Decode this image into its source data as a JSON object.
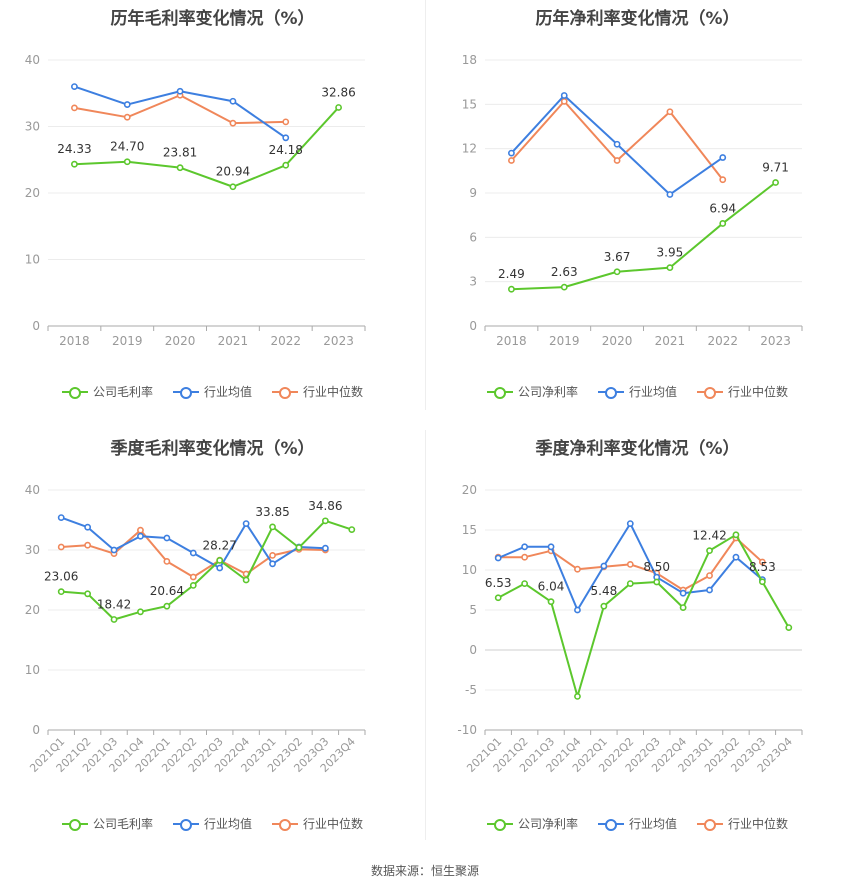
{
  "legend_colors": {
    "company": "#5cc72d",
    "industry_avg": "#3d7fe0",
    "industry_median": "#f0875a"
  },
  "footer": {
    "source": "数据来源：恒生聚源"
  },
  "chart_data": [
    {
      "type": "line",
      "title": "历年毛利率变化情况（%）",
      "x": [
        "2018",
        "2019",
        "2020",
        "2021",
        "2022",
        "2023"
      ],
      "ylim": [
        0,
        40
      ],
      "yticks": [
        "0",
        "10",
        "20",
        "30",
        "40"
      ],
      "grid": true,
      "legend_position": "bottom",
      "series": [
        {
          "name": "公司毛利率",
          "color": "#5cc72d",
          "values": [
            24.33,
            24.7,
            23.81,
            20.94,
            24.18,
            32.86
          ],
          "labels": [
            "24.33",
            "24.70",
            "23.81",
            "20.94",
            "24.18",
            "32.86"
          ]
        },
        {
          "name": "行业均值",
          "color": "#3d7fe0",
          "values": [
            36.0,
            33.3,
            35.3,
            33.8,
            28.3,
            null
          ]
        },
        {
          "name": "行业中位数",
          "color": "#f0875a",
          "values": [
            32.8,
            31.4,
            34.7,
            30.5,
            30.7,
            null
          ]
        }
      ]
    },
    {
      "type": "line",
      "title": "历年净利率变化情况（%）",
      "x": [
        "2018",
        "2019",
        "2020",
        "2021",
        "2022",
        "2023"
      ],
      "ylim": [
        0,
        18
      ],
      "yticks": [
        "0",
        "3",
        "6",
        "9",
        "12",
        "15",
        "18"
      ],
      "grid": true,
      "legend_position": "bottom",
      "series": [
        {
          "name": "公司净利率",
          "color": "#5cc72d",
          "values": [
            2.49,
            2.63,
            3.67,
            3.95,
            6.94,
            9.71
          ],
          "labels": [
            "2.49",
            "2.63",
            "3.67",
            "3.95",
            "6.94",
            "9.71"
          ]
        },
        {
          "name": "行业均值",
          "color": "#3d7fe0",
          "values": [
            11.7,
            15.6,
            12.3,
            8.9,
            11.4,
            null
          ]
        },
        {
          "name": "行业中位数",
          "color": "#f0875a",
          "values": [
            11.2,
            15.2,
            11.2,
            14.5,
            9.9,
            null
          ]
        }
      ]
    },
    {
      "type": "line",
      "title": "季度毛利率变化情况（%）",
      "x": [
        "2021Q1",
        "2021Q2",
        "2021Q3",
        "2021Q4",
        "2022Q1",
        "2022Q2",
        "2022Q3",
        "2022Q4",
        "2023Q1",
        "2023Q2",
        "2023Q3",
        "2023Q4"
      ],
      "ylim": [
        0,
        40
      ],
      "yticks": [
        "0",
        "10",
        "20",
        "30",
        "40"
      ],
      "grid": true,
      "legend_position": "bottom",
      "series": [
        {
          "name": "公司毛利率",
          "color": "#5cc72d",
          "values": [
            23.06,
            22.7,
            18.42,
            19.7,
            20.64,
            24.1,
            28.27,
            25.0,
            33.85,
            30.4,
            34.86,
            33.4
          ],
          "labels": [
            "23.06",
            "",
            "18.42",
            "",
            "20.64",
            "",
            "28.27",
            "",
            "33.85",
            "",
            "34.86",
            ""
          ]
        },
        {
          "name": "行业均值",
          "color": "#3d7fe0",
          "values": [
            35.4,
            33.8,
            30.0,
            32.3,
            32.0,
            29.5,
            27.0,
            34.4,
            27.7,
            30.5,
            30.3,
            null
          ]
        },
        {
          "name": "行业中位数",
          "color": "#f0875a",
          "values": [
            30.5,
            30.8,
            29.4,
            33.3,
            28.1,
            25.5,
            28.3,
            26.0,
            29.1,
            30.1,
            30.0,
            null
          ]
        }
      ]
    },
    {
      "type": "line",
      "title": "季度净利率变化情况（%）",
      "x": [
        "2021Q1",
        "2021Q2",
        "2021Q3",
        "2021Q4",
        "2022Q1",
        "2022Q2",
        "2022Q3",
        "2022Q4",
        "2023Q1",
        "2023Q2",
        "2023Q3",
        "2023Q4"
      ],
      "ylim": [
        -10,
        20
      ],
      "yticks": [
        "-10",
        "-5",
        "0",
        "5",
        "10",
        "15",
        "20"
      ],
      "grid": true,
      "legend_position": "bottom",
      "series": [
        {
          "name": "公司净利率",
          "color": "#5cc72d",
          "values": [
            6.53,
            8.3,
            6.04,
            -5.8,
            5.48,
            8.3,
            8.5,
            5.3,
            12.42,
            14.4,
            8.53,
            2.8
          ],
          "labels": [
            "6.53",
            "",
            "6.04",
            "",
            "5.48",
            "",
            "8.50",
            "",
            "12.42",
            "",
            "8.53",
            ""
          ]
        },
        {
          "name": "行业均值",
          "color": "#3d7fe0",
          "values": [
            11.5,
            12.9,
            12.9,
            5.0,
            10.5,
            15.8,
            9.1,
            7.1,
            7.5,
            11.6,
            8.8,
            null
          ]
        },
        {
          "name": "行业中位数",
          "color": "#f0875a",
          "values": [
            11.6,
            11.6,
            12.4,
            10.1,
            10.4,
            10.7,
            9.6,
            7.5,
            9.3,
            14.0,
            11.0,
            null
          ]
        }
      ]
    }
  ]
}
